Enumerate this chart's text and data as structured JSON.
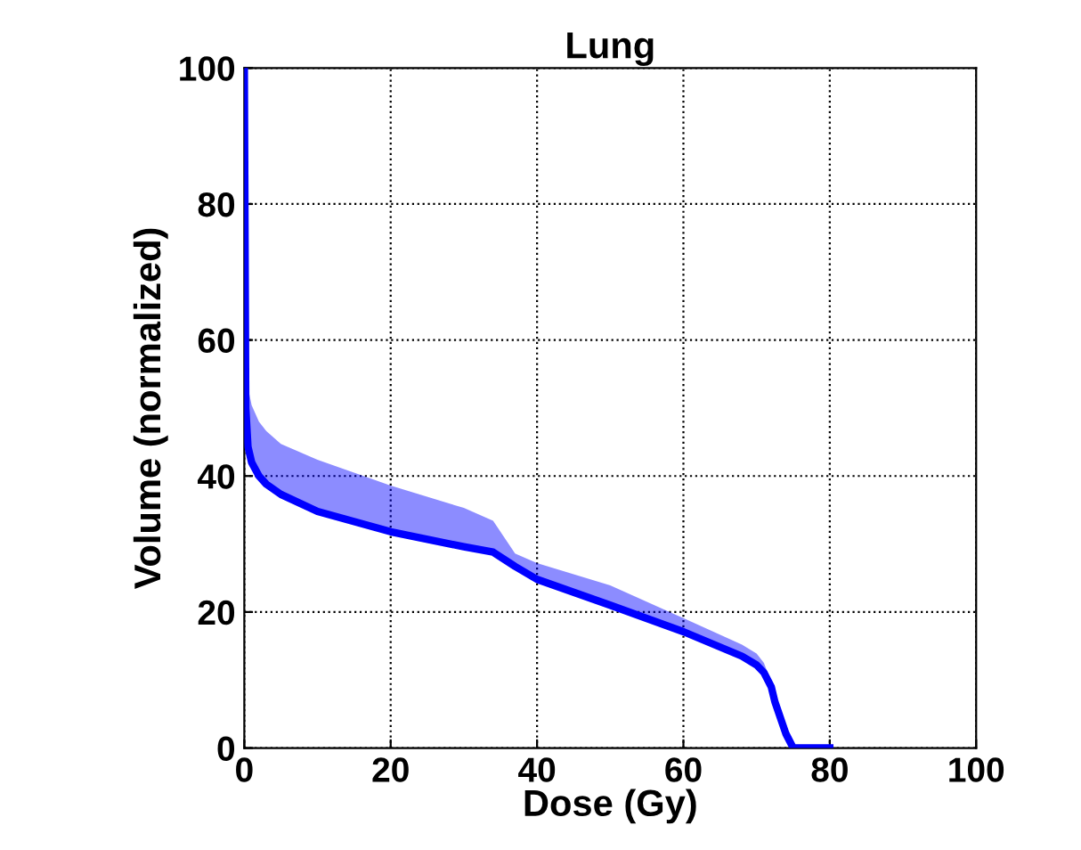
{
  "chart_data": {
    "type": "line",
    "title": "Lung",
    "xlabel": "Dose (Gy)",
    "ylabel": "Volume (normalized)",
    "x": [
      0,
      0.2,
      0.5,
      1,
      2,
      3,
      5,
      10,
      20,
      30,
      34,
      37,
      40,
      50,
      60,
      68,
      70,
      71,
      72,
      72.5,
      74,
      75,
      80
    ],
    "series": [
      {
        "color": "#0000ff",
        "values": [
          100,
          50,
          44.3,
          42,
          40,
          38.8,
          37.3,
          34.8,
          31.8,
          29.6,
          28.8,
          26.7,
          24.8,
          21.0,
          17.1,
          13.5,
          12.2,
          11.1,
          9,
          6.8,
          2.1,
          0,
          0
        ],
        "lower": [
          100,
          50,
          44.3,
          42,
          40,
          38.8,
          37.3,
          34.8,
          31.8,
          29.6,
          28.8,
          26.7,
          24.8,
          21.0,
          17.1,
          13.5,
          12.2,
          11.1,
          9,
          6.8,
          2.1,
          0,
          0
        ],
        "upper": [
          100,
          56,
          53,
          50.4,
          48,
          46.6,
          44.7,
          42.4,
          38.6,
          35.3,
          33.4,
          28.6,
          27.2,
          23.9,
          19.1,
          15.2,
          13.9,
          12.5,
          9.7,
          8,
          2.1,
          0,
          0
        ]
      }
    ],
    "xlim": [
      0,
      100
    ],
    "ylim": [
      0,
      100
    ],
    "xticks": [
      0,
      20,
      40,
      60,
      80,
      100
    ],
    "yticks": [
      0,
      20,
      40,
      60,
      80,
      100
    ],
    "grid": true,
    "line_style": "solid",
    "marker": "none"
  }
}
